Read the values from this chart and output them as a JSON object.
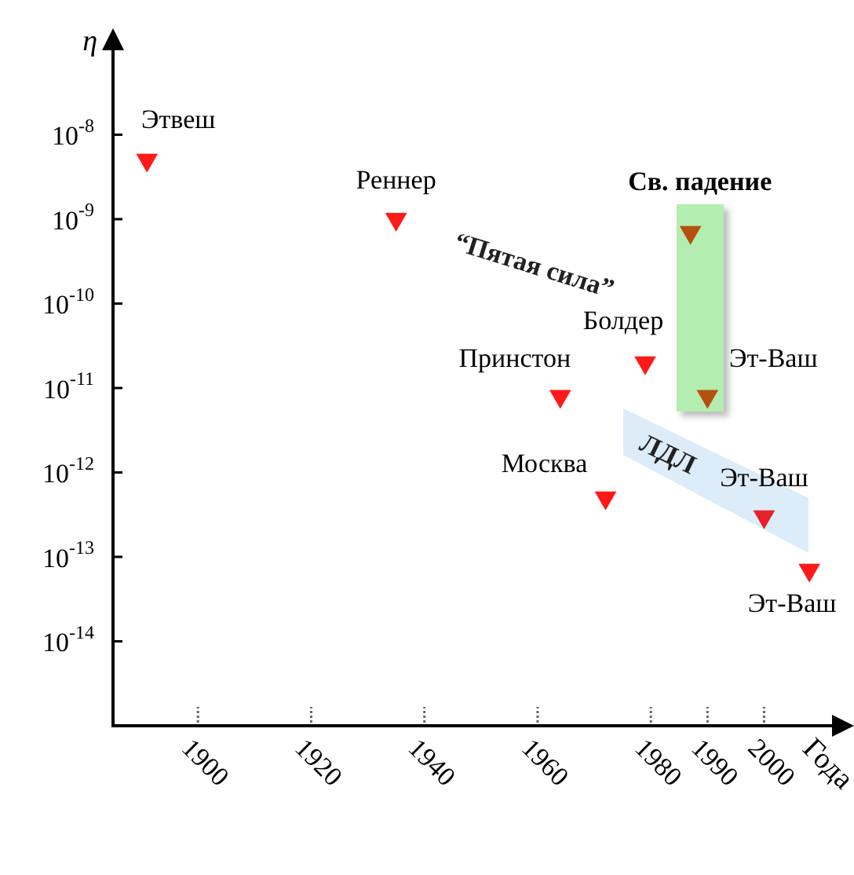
{
  "chart_data": {
    "type": "scatter",
    "ylabel": "η",
    "xlabel": "Года",
    "x": [
      1891,
      1935,
      1964,
      1972,
      1979,
      1987,
      1990,
      2000,
      2008
    ],
    "values": [
      5e-09,
      1e-09,
      8e-12,
      5e-13,
      2e-11,
      7e-10,
      8e-12,
      3e-13,
      7e-14
    ],
    "colors": [
      "#ff1a1a",
      "#ff1a1a",
      "#ff1a1a",
      "#ff1a1a",
      "#ff1a1a",
      "#b5500f",
      "#b5500f",
      "#e8202a",
      "#ff1a1a"
    ],
    "marker": "triangle",
    "log": "y",
    "grid": false,
    "legend": false,
    "xlim": [
      1885,
      2012
    ],
    "ylim": [
      1e-15,
      1e-07
    ],
    "xticks": [
      1900,
      1920,
      1940,
      1960,
      1980,
      1990,
      2000
    ],
    "yticks": [
      {
        "value": 1e-08,
        "label": "10$^{-8}$"
      },
      {
        "value": 1e-09,
        "label": "10$^{-9}$"
      },
      {
        "value": 1e-10,
        "label": "10$^{-10}$"
      },
      {
        "value": 1e-11,
        "label": "10$^{-11}$"
      },
      {
        "value": 1e-12,
        "label": "10$^{-12}$"
      },
      {
        "value": 1e-13,
        "label": "10$^{-13}$"
      },
      {
        "value": 1e-14,
        "label": "10$^{-14}$"
      }
    ],
    "annotations": [
      {
        "text": "Этвеш",
        "x": 1891,
        "y": 5e-09
      },
      {
        "text": "Реннер",
        "x": 1935,
        "y": 1e-09
      },
      {
        "text": "Принстон",
        "x": 1964,
        "y": 8e-12
      },
      {
        "text": "Москва",
        "x": 1972,
        "y": 5e-13
      },
      {
        "text": "Болдер",
        "x": 1979,
        "y": 2e-11
      },
      {
        "text": "Св. падение",
        "x": 1987,
        "y": 7e-10
      },
      {
        "text": "Эт-Ваш",
        "x": 1990,
        "y": 8e-12
      },
      {
        "text": "Эт-Ваш",
        "x": 2000,
        "y": 3e-13
      },
      {
        "text": "Эт-Ваш",
        "x": 2008,
        "y": 7e-14
      },
      "“Пятая сила”",
      "ЛДЛ"
    ]
  }
}
